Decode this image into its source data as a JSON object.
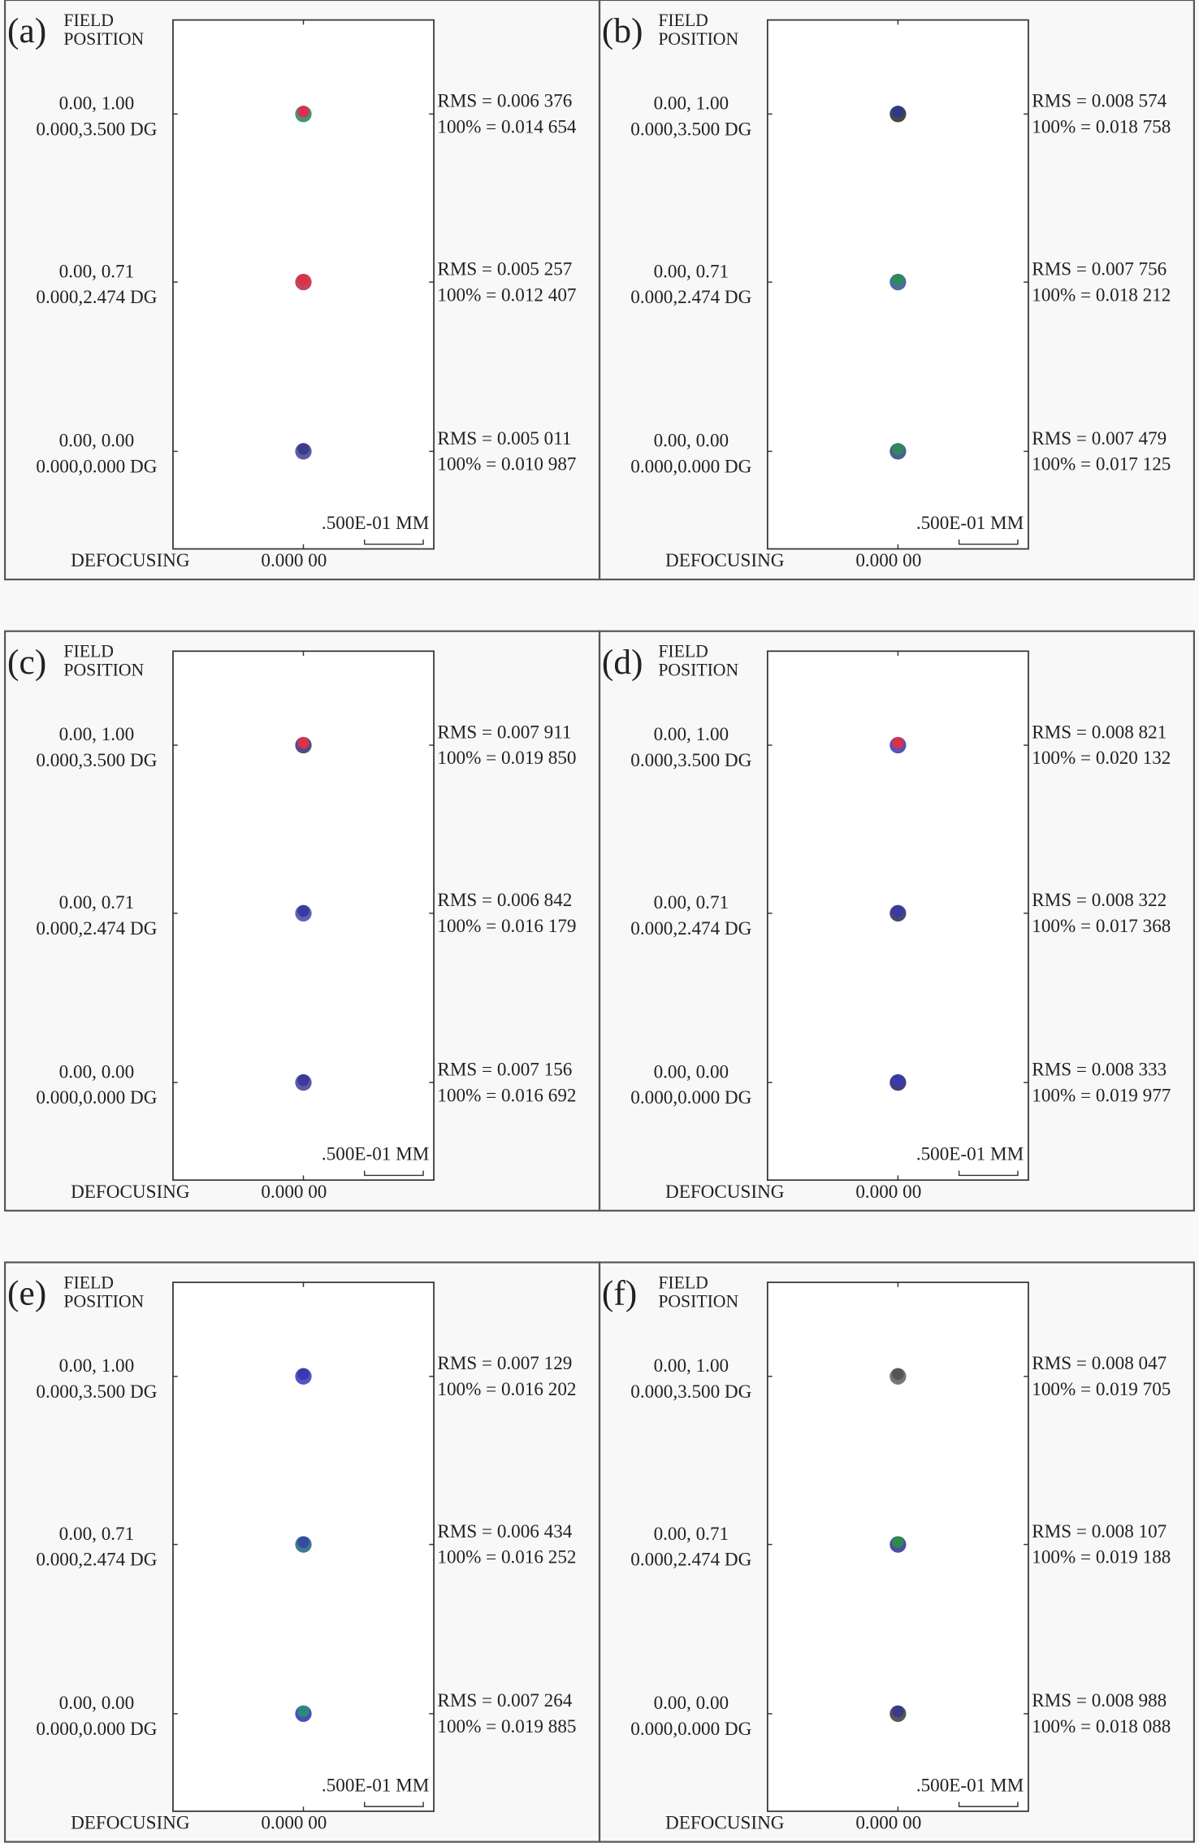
{
  "panels": [
    {
      "label": "(a)",
      "field_header": [
        "FIELD",
        "POSITION"
      ],
      "fields": [
        {
          "field": "0.00, 1.00",
          "angle": "0.000,3.500 DG",
          "rms": "RMS = 0.006 376",
          "full": "100% = 0.014 654"
        },
        {
          "field": "0.00, 0.71",
          "angle": "0.000,2.474 DG",
          "rms": "RMS = 0.005 257",
          "full": "100% = 0.012 407"
        },
        {
          "field": "0.00, 0.00",
          "angle": "0.000,0.000 DG",
          "rms": "RMS = 0.005 011",
          "full": "100% = 0.010 987"
        }
      ],
      "scale": ".500E-01 MM",
      "defocus_label": "DEFOCUSING",
      "defocus_value": "0.000 00"
    },
    {
      "label": "(b)",
      "field_header": [
        "FIELD",
        "POSITION"
      ],
      "fields": [
        {
          "field": "0.00, 1.00",
          "angle": "0.000,3.500 DG",
          "rms": "RMS = 0.008 574",
          "full": "100% = 0.018 758"
        },
        {
          "field": "0.00, 0.71",
          "angle": "0.000,2.474 DG",
          "rms": "RMS = 0.007 756",
          "full": "100% = 0.018 212"
        },
        {
          "field": "0.00, 0.00",
          "angle": "0.000,0.000 DG",
          "rms": "RMS = 0.007 479",
          "full": "100% = 0.017 125"
        }
      ],
      "scale": ".500E-01 MM",
      "defocus_label": "DEFOCUSING",
      "defocus_value": "0.000 00"
    },
    {
      "label": "(c)",
      "field_header": [
        "FIELD",
        "POSITION"
      ],
      "fields": [
        {
          "field": "0.00, 1.00",
          "angle": "0.000,3.500 DG",
          "rms": "RMS = 0.007 911",
          "full": "100% = 0.019 850"
        },
        {
          "field": "0.00, 0.71",
          "angle": "0.000,2.474 DG",
          "rms": "RMS = 0.006 842",
          "full": "100% = 0.016 179"
        },
        {
          "field": "0.00, 0.00",
          "angle": "0.000,0.000 DG",
          "rms": "RMS = 0.007 156",
          "full": "100% = 0.016 692"
        }
      ],
      "scale": ".500E-01 MM",
      "defocus_label": "DEFOCUSING",
      "defocus_value": "0.000 00"
    },
    {
      "label": "(d)",
      "field_header": [
        "FIELD",
        "POSITION"
      ],
      "fields": [
        {
          "field": "0.00, 1.00",
          "angle": "0.000,3.500 DG",
          "rms": "RMS = 0.008 821",
          "full": "100% = 0.020 132"
        },
        {
          "field": "0.00, 0.71",
          "angle": "0.000,2.474 DG",
          "rms": "RMS = 0.008 322",
          "full": "100% = 0.017 368"
        },
        {
          "field": "0.00, 0.00",
          "angle": "0.000,0.000 DG",
          "rms": "RMS = 0.008 333",
          "full": "100% = 0.019 977"
        }
      ],
      "scale": ".500E-01 MM",
      "defocus_label": "DEFOCUSING",
      "defocus_value": "0.000 00"
    },
    {
      "label": "(e)",
      "field_header": [
        "FIELD",
        "POSITION"
      ],
      "fields": [
        {
          "field": "0.00, 1.00",
          "angle": "0.000,3.500 DG",
          "rms": "RMS = 0.007 129",
          "full": "100% = 0.016 202"
        },
        {
          "field": "0.00, 0.71",
          "angle": "0.000,2.474 DG",
          "rms": "RMS = 0.006 434",
          "full": "100% = 0.016 252"
        },
        {
          "field": "0.00, 0.00",
          "angle": "0.000,0.000 DG",
          "rms": "RMS = 0.007 264",
          "full": "100% = 0.019 885"
        }
      ],
      "scale": ".500E-01 MM",
      "defocus_label": "DEFOCUSING",
      "defocus_value": "0.000 00"
    },
    {
      "label": "(f)",
      "field_header": [
        "FIELD",
        "POSITION"
      ],
      "fields": [
        {
          "field": "0.00, 1.00",
          "angle": "0.000,3.500 DG",
          "rms": "RMS = 0.008 047",
          "full": "100% = 0.019 705"
        },
        {
          "field": "0.00, 0.71",
          "angle": "0.000,2.474 DG",
          "rms": "RMS = 0.008 107",
          "full": "100% = 0.019 188"
        },
        {
          "field": "0.00, 0.00",
          "angle": "0.000,0.000 DG",
          "rms": "RMS = 0.008 988",
          "full": "100% = 0.018 088"
        }
      ],
      "scale": ".500E-01 MM",
      "defocus_label": "DEFOCUSING",
      "defocus_value": "0.000 00"
    }
  ]
}
